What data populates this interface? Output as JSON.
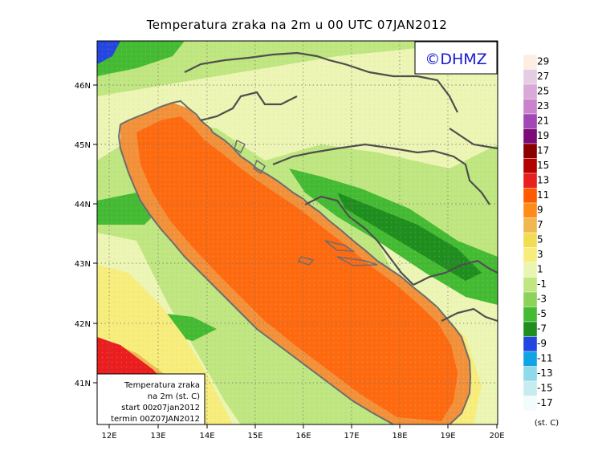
{
  "title": "Temperatura zraka na 2m u 00 UTC 07JAN2012",
  "logo": "©DHMZ",
  "info": {
    "line1": "Temperatura zraka",
    "line2": "na 2m (st. C)",
    "line3": "start 00z07jan2012",
    "line4": "termin 00Z07JAN2012"
  },
  "lon_labels": [
    "12E",
    "13E",
    "14E",
    "15E",
    "16E",
    "17E",
    "18E",
    "19E",
    "20E"
  ],
  "lat_labels": [
    "41N",
    "42N",
    "43N",
    "44N",
    "45N",
    "46N"
  ],
  "colorbar": {
    "labels": [
      "29",
      "27",
      "25",
      "23",
      "21",
      "19",
      "17",
      "15",
      "13",
      "11",
      "9",
      "7",
      "5",
      "3",
      "1",
      "-1",
      "-3",
      "-5",
      "-7",
      "-9",
      "-11",
      "-13",
      "-15",
      "-17"
    ],
    "unit": "(st. C)",
    "colors": [
      "#fcefe2",
      "#e6cce3",
      "#d9a9d7",
      "#c983cc",
      "#a347b5",
      "#7c0a78",
      "#8a0000",
      "#b40000",
      "#ea1e1e",
      "#ff5a00",
      "#ff8c1a",
      "#efb850",
      "#f2dc54",
      "#f7ed7c",
      "#e9f5b0",
      "#bfe680",
      "#8dd35a",
      "#44bb33",
      "#1f8e1f",
      "#2446e0",
      "#12a2e6",
      "#8fd9e8",
      "#c6ecf0",
      "#f2fcfc"
    ]
  },
  "colors": {
    "sea_core": "#fd6a10",
    "sea_edge": "#f2913a",
    "land_mild": "#ecf5b3",
    "land_cool": "#bfe680",
    "land_cold": "#44bb33",
    "land_very_cold": "#1f8e1f",
    "coast": "#6d6d6d",
    "border": "#4e4e4e"
  }
}
